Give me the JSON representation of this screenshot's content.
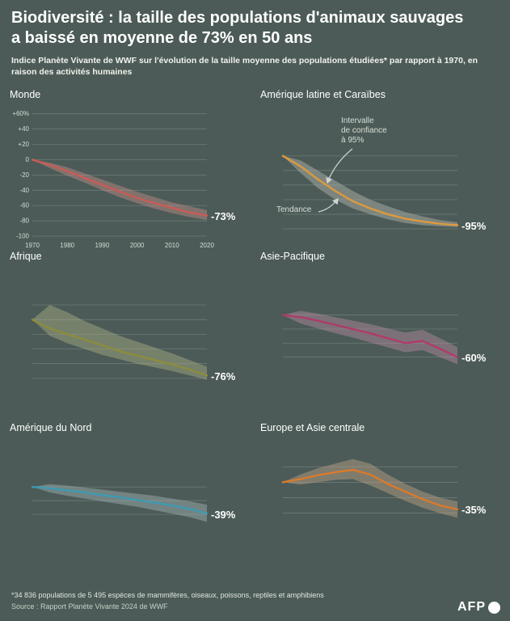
{
  "header": {
    "title": "Biodiversité : la taille des populations d'animaux sauvages a baissé en moyenne de 73% en 50 ans",
    "subtitle": "Indice Planète Vivante de WWF sur l'évolution de la taille moyenne des populations étudiées* par rapport à 1970, en raison des activités humaines"
  },
  "annotations": {
    "interval": "Intervalle\nde confiance\nà 95%",
    "tendance": "Tendance"
  },
  "footer": {
    "footnote": "*34 836 populations de 5 495 espèces de mammifères, oiseaux, poissons, reptiles et amphibiens",
    "source": "Source : Rapport Planète Vivante 2024 de WWF",
    "logo": "AFP"
  },
  "chart_data": [
    {
      "type": "line",
      "id": "monde",
      "title": "Monde",
      "value_label": "-73%",
      "color": "#c85c55",
      "band_color": "rgba(210,150,145,0.40)",
      "ylim": [
        -100,
        65
      ],
      "x_years": [
        1970,
        1975,
        1980,
        1985,
        1990,
        1995,
        2000,
        2005,
        2010,
        2015,
        2020
      ],
      "trend": [
        0,
        -7,
        -15,
        -24,
        -33,
        -42,
        -50,
        -57,
        -63,
        -69,
        -73
      ],
      "upper": [
        0,
        -4,
        -10,
        -18,
        -26,
        -34,
        -42,
        -49,
        -56,
        -61,
        -66
      ],
      "lower": [
        0,
        -11,
        -21,
        -30,
        -40,
        -49,
        -57,
        -64,
        -70,
        -75,
        -79
      ],
      "grid": [
        60,
        40,
        20,
        0,
        -20,
        -40,
        -60,
        -80,
        -100
      ],
      "ytick_labels": [
        "+60%",
        "+40",
        "+20",
        "0",
        "-20",
        "-40",
        "-60",
        "-80",
        "-100"
      ],
      "xtick_years": [
        1970,
        1980,
        1990,
        2000,
        2010,
        2020
      ],
      "xtick_labels": [
        "1970",
        "1980",
        "1990",
        "2000",
        "2010",
        "2020"
      ]
    },
    {
      "type": "line",
      "id": "amerique-latine",
      "title": "Amérique latine et Caraïbes",
      "value_label": "-95%",
      "color": "#dd9a3e",
      "band_color": "rgba(185,185,178,0.45)",
      "ylim": [
        -100,
        12
      ],
      "x_years": [
        1970,
        1975,
        1980,
        1985,
        1990,
        1995,
        2000,
        2005,
        2010,
        2015,
        2020
      ],
      "trend": [
        0,
        -14,
        -32,
        -48,
        -62,
        -72,
        -80,
        -86,
        -90,
        -93,
        -95
      ],
      "upper": [
        0,
        -6,
        -20,
        -34,
        -48,
        -60,
        -69,
        -77,
        -83,
        -88,
        -91
      ],
      "lower": [
        0,
        -23,
        -44,
        -60,
        -72,
        -80,
        -87,
        -92,
        -95,
        -96.5,
        -97.5
      ],
      "grid": [
        0,
        -20,
        -40,
        -60,
        -80,
        -100
      ]
    },
    {
      "type": "line",
      "id": "afrique",
      "title": "Afrique",
      "value_label": "-76%",
      "color": "#8c8c3c",
      "band_color": "rgba(170,175,135,0.45)",
      "ylim": [
        -90,
        30
      ],
      "x_years": [
        1970,
        1975,
        1980,
        1985,
        1990,
        1995,
        2000,
        2005,
        2010,
        2015,
        2020
      ],
      "trend": [
        0,
        -12,
        -20,
        -27,
        -35,
        -43,
        -49,
        -55,
        -61,
        -68,
        -76
      ],
      "upper": [
        0,
        20,
        10,
        -2,
        -12,
        -22,
        -30,
        -38,
        -46,
        -55,
        -64
      ],
      "lower": [
        0,
        -22,
        -32,
        -40,
        -48,
        -54,
        -60,
        -65,
        -70,
        -76,
        -82
      ],
      "grid": [
        20,
        0,
        -20,
        -40,
        -60,
        -80
      ]
    },
    {
      "type": "line",
      "id": "asie-pacifique",
      "title": "Asie-Pacifique",
      "value_label": "-60%",
      "color": "#b03a6a",
      "band_color": "rgba(185,140,165,0.45)",
      "ylim": [
        -80,
        18
      ],
      "x_years": [
        1970,
        1975,
        1980,
        1985,
        1990,
        1995,
        2000,
        2005,
        2010,
        2015,
        2020
      ],
      "trend": [
        0,
        -3,
        -8,
        -14,
        -20,
        -26,
        -33,
        -40,
        -37,
        -48,
        -60
      ],
      "upper": [
        0,
        6,
        2,
        -3,
        -8,
        -13,
        -19,
        -25,
        -21,
        -33,
        -46
      ],
      "lower": [
        0,
        -12,
        -19,
        -26,
        -32,
        -39,
        -46,
        -53,
        -50,
        -60,
        -70
      ],
      "grid": [
        0,
        -20,
        -40,
        -60
      ]
    },
    {
      "type": "line",
      "id": "amerique-nord",
      "title": "Amérique du Nord",
      "value_label": "-39%",
      "color": "#3e9ab2",
      "band_color": "rgba(165,180,185,0.45)",
      "ylim": [
        -60,
        12
      ],
      "x_years": [
        1970,
        1975,
        1980,
        1985,
        1990,
        1995,
        2000,
        2005,
        2010,
        2015,
        2020
      ],
      "trend": [
        0,
        -2,
        -5,
        -8,
        -12,
        -15,
        -19,
        -23,
        -27,
        -32,
        -39
      ],
      "upper": [
        0,
        4,
        2,
        -1,
        -4,
        -7,
        -10,
        -13,
        -17,
        -21,
        -26
      ],
      "lower": [
        0,
        -8,
        -13,
        -17,
        -21,
        -25,
        -29,
        -34,
        -39,
        -44,
        -51
      ],
      "grid": [
        0,
        -20,
        -40
      ]
    },
    {
      "type": "line",
      "id": "europe-asie-centrale",
      "title": "Europe et Asie centrale",
      "value_label": "-35%",
      "color": "#d97a2c",
      "band_color": "rgba(190,165,140,0.45)",
      "ylim": [
        -55,
        38
      ],
      "x_years": [
        1970,
        1975,
        1980,
        1985,
        1990,
        1995,
        2000,
        2005,
        2010,
        2015,
        2020
      ],
      "trend": [
        0,
        4,
        9,
        13,
        16,
        10,
        -2,
        -12,
        -22,
        -30,
        -35
      ],
      "upper": [
        0,
        10,
        18,
        24,
        30,
        24,
        10,
        -2,
        -12,
        -20,
        -25
      ],
      "lower": [
        0,
        -3,
        0,
        3,
        4,
        -4,
        -14,
        -24,
        -33,
        -40,
        -46
      ],
      "grid": [
        20,
        0,
        -20,
        -40
      ]
    }
  ]
}
